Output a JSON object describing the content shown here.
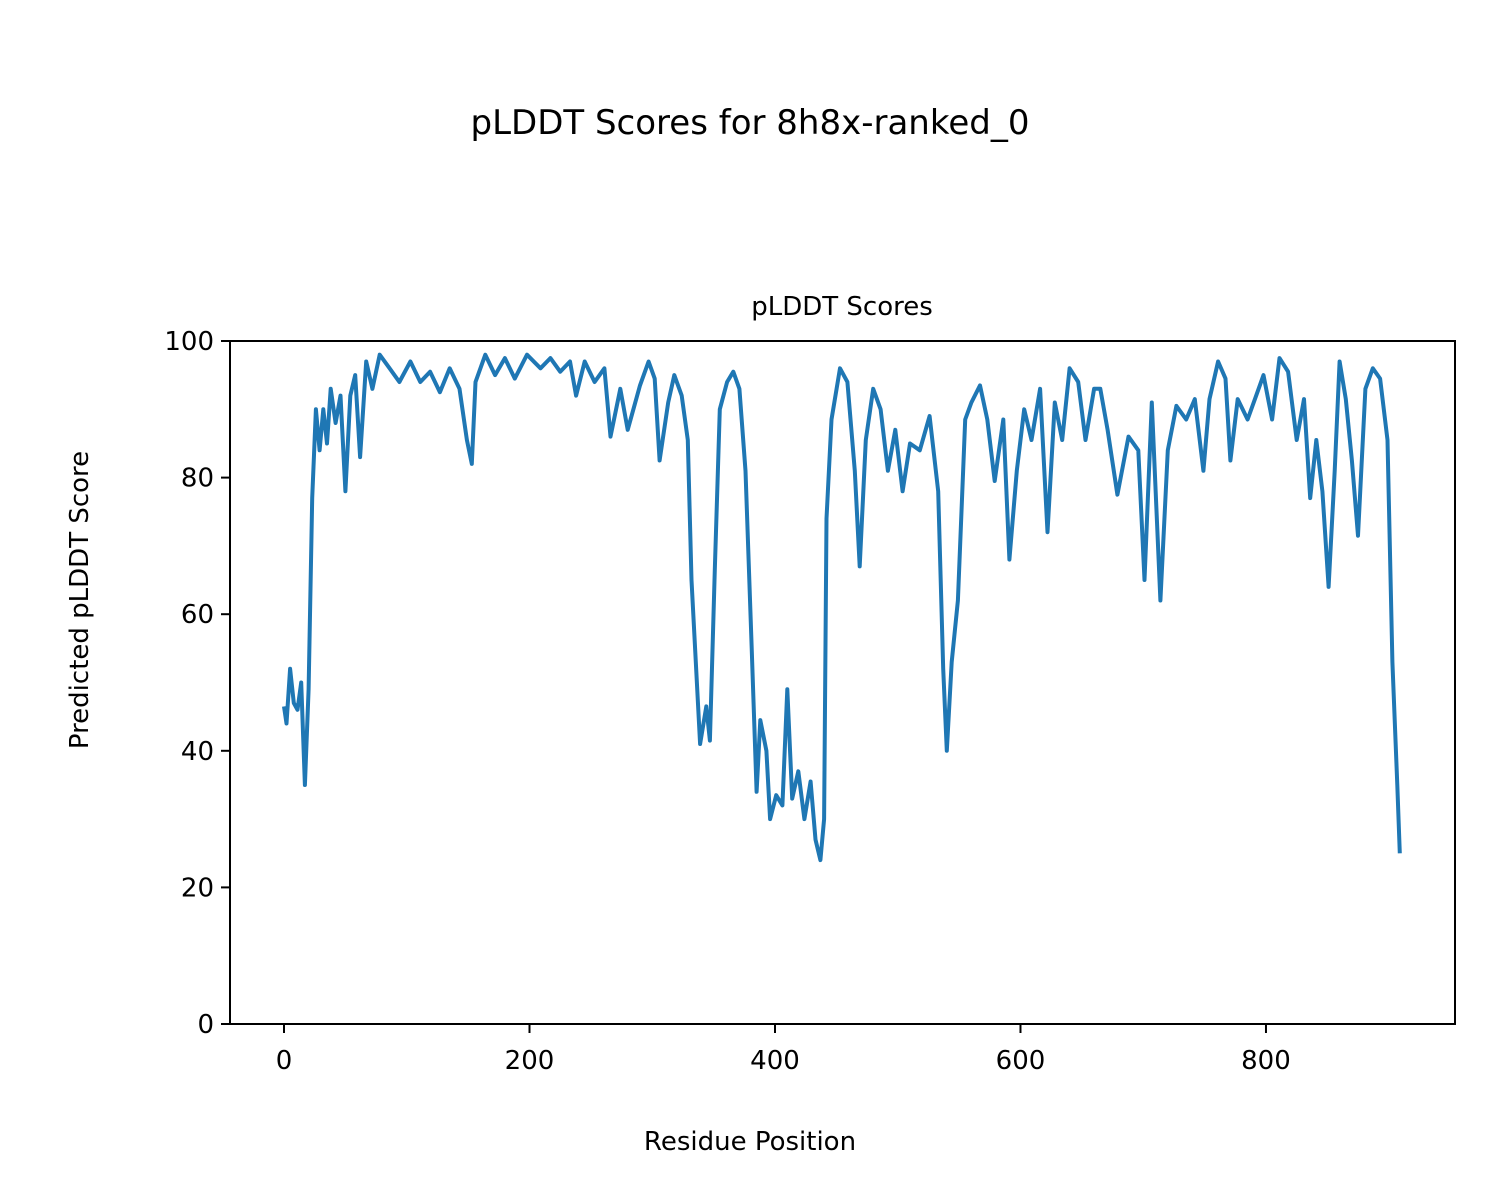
{
  "chart_data": {
    "type": "line",
    "suptitle": "pLDDT Scores for 8h8x-ranked_0",
    "title": "pLDDT Scores",
    "xlabel": "Residue Position",
    "ylabel": "Predicted pLDDT Score",
    "xlim": [
      -44,
      954
    ],
    "ylim": [
      0,
      100
    ],
    "xticks": [
      0,
      200,
      400,
      600,
      800
    ],
    "yticks": [
      0,
      20,
      40,
      60,
      80,
      100
    ],
    "grid": false,
    "series": [
      {
        "name": "pLDDT",
        "color": "#1f77b4",
        "x": [
          0,
          2,
          5,
          8,
          11,
          14,
          17,
          20,
          23,
          26,
          29,
          32,
          35,
          38,
          42,
          46,
          50,
          54,
          58,
          62,
          67,
          72,
          78,
          86,
          94,
          103,
          111,
          119,
          127,
          135,
          143,
          149,
          153,
          156,
          164,
          172,
          180,
          188,
          198,
          209,
          217,
          225,
          233,
          238,
          245,
          253,
          261,
          266,
          274,
          280,
          290,
          297,
          302,
          306,
          313,
          318,
          324,
          329,
          332,
          339,
          344,
          347,
          351,
          355,
          361,
          366,
          371,
          376,
          381,
          385,
          388,
          393,
          396,
          401,
          406,
          410,
          414,
          419,
          424,
          429,
          433,
          437,
          440,
          442,
          446,
          453,
          459,
          465,
          469,
          474,
          480,
          486,
          492,
          498,
          504,
          510,
          518,
          526,
          533,
          537,
          540,
          544,
          549,
          555,
          560,
          567,
          573,
          579,
          586,
          591,
          597,
          603,
          609,
          616,
          622,
          628,
          634,
          640,
          647,
          653,
          660,
          665,
          671,
          679,
          688,
          696,
          701,
          707,
          714,
          720,
          727,
          735,
          742,
          749,
          754,
          761,
          767,
          771,
          777,
          785,
          792,
          798,
          805,
          811,
          818,
          825,
          831,
          836,
          841,
          846,
          851,
          856,
          860,
          865,
          870,
          875,
          881,
          887,
          893,
          899,
          903,
          907,
          909
        ],
        "y": [
          46.5,
          44,
          52,
          47,
          46,
          50,
          35,
          49,
          77,
          90,
          84,
          90,
          85,
          93,
          88,
          92,
          78,
          92,
          95,
          83,
          97,
          93,
          98,
          96,
          94,
          97,
          94,
          95.5,
          92.5,
          96,
          93,
          85.5,
          82,
          94,
          98,
          95,
          97.5,
          94.5,
          98,
          96,
          97.5,
          95.5,
          97,
          92,
          97,
          94,
          96,
          86,
          93,
          87,
          93.5,
          97,
          94.5,
          82.5,
          91,
          95,
          92,
          85.5,
          65,
          41,
          46.5,
          41.5,
          66.5,
          90,
          94,
          95.5,
          93,
          81,
          55,
          34,
          44.5,
          40,
          30,
          33.5,
          32,
          49,
          33,
          37,
          30,
          35.5,
          27,
          24,
          30,
          74,
          88.5,
          96,
          94,
          81,
          67,
          85.5,
          93,
          90,
          81,
          87,
          78,
          85,
          84,
          89,
          78,
          52,
          40,
          53,
          62,
          88.5,
          91,
          93.5,
          88.5,
          79.5,
          88.5,
          68,
          81,
          90,
          85.5,
          93,
          72,
          91,
          85.5,
          96,
          94,
          85.5,
          93,
          93,
          87,
          77.5,
          86,
          84,
          65,
          91,
          62,
          84,
          90.5,
          88.5,
          91.5,
          81,
          91.5,
          97,
          94.5,
          82.5,
          91.5,
          88.5,
          92,
          95,
          88.5,
          97.5,
          95.5,
          85.5,
          91.5,
          77,
          85.5,
          78,
          64,
          81,
          97,
          91.5,
          82.5,
          71.5,
          93,
          96,
          94.5,
          85.5,
          53,
          35,
          25
        ]
      }
    ]
  }
}
